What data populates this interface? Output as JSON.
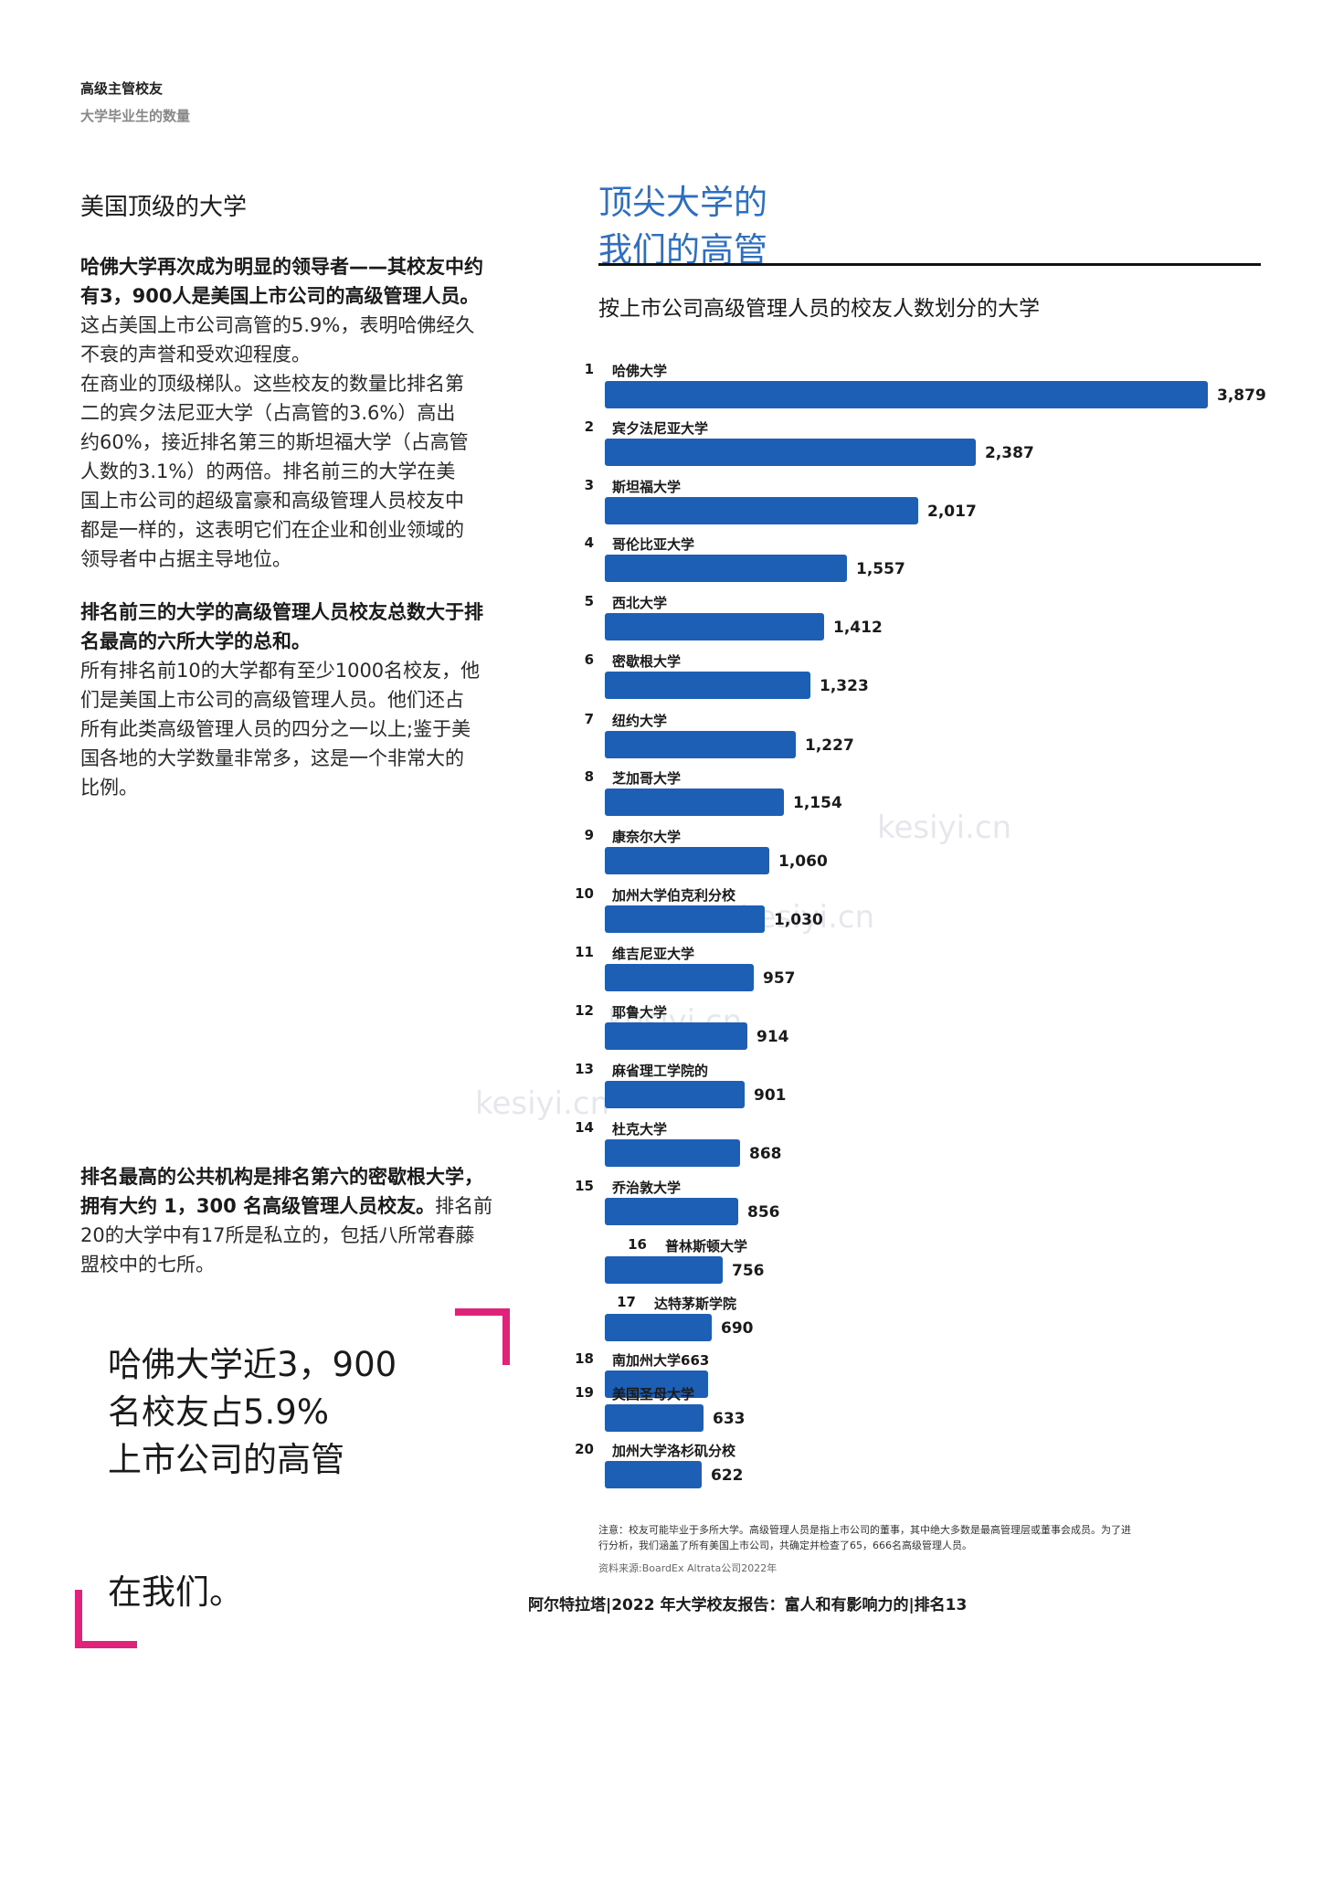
{
  "header": {
    "title": "高级主管校友",
    "subtitle": "大学毕业生的数量"
  },
  "left": {
    "heading": "美国顶级的大学",
    "p1_bold": [
      "哈佛大学再次成为明显的领导者——其校友中约",
      "有3，900人是美国上市公司的高级管理人员。"
    ],
    "p1_lines": [
      "这占美国上市公司高管的5.9%，表明哈佛经久",
      "不衰的声誉和受欢迎程度。",
      "在商业的顶级梯队。这些校友的数量比排名第",
      "二的宾夕法尼亚大学（占高管的3.6%）高出",
      "约60%，接近排名第三的斯坦福大学（占高管",
      "人数的3.1%）的两倍。排名前三的大学在美",
      "国上市公司的超级富豪和高级管理人员校友中",
      "都是一样的，这表明它们在企业和创业领域的",
      "领导者中占据主导地位。"
    ],
    "p2_bold": [
      "排名前三的大学的高级管理人员校友总数大于排",
      "名最高的六所大学的总和。"
    ],
    "p2_lines": [
      "所有排名前10的大学都有至少1000名校友，他",
      "们是美国上市公司的高级管理人员。他们还占",
      "所有此类高级管理人员的四分之一以上;鉴于美",
      "国各地的大学数量非常多，这是一个非常大的",
      "比例。"
    ],
    "p3_bold_1": "排名最高的公共机构是排名第六的密歇根大学，",
    "p3_bold_2": "拥有大约 1，300 名高级管理人员校友。",
    "p3_rest_2": "排名前",
    "p3_lines": [
      "20的大学中有17所是私立的，包括八所常春藤",
      "盟校中的七所。"
    ],
    "quote": [
      "哈佛大学近3，900",
      "名校友占5.9%",
      "上市公司的高管"
    ],
    "quote_tail": "在我们。"
  },
  "right": {
    "title_lines": [
      "顶尖大学的",
      "我们的高管"
    ],
    "chart_subtitle": "按上市公司高级管理人员的校友人数划分的大学"
  },
  "chart_data": {
    "type": "bar",
    "orientation": "horizontal",
    "title": "按上市公司高级管理人员的校友人数划分的大学",
    "bar_color": "#1d5fb4",
    "ranks": [
      "1",
      "2",
      "3",
      "4",
      "5",
      "6",
      "7",
      "8",
      "9",
      "10",
      "11",
      "12",
      "13",
      "14",
      "15",
      "16",
      "17",
      "18",
      "19",
      "20"
    ],
    "categories": [
      "哈佛大学",
      "宾夕法尼亚大学",
      "斯坦福大学",
      "哥伦比亚大学",
      "西北大学",
      "密歇根大学",
      "纽约大学",
      "芝加哥大学",
      "康奈尔大学",
      "加州大学伯克利分校",
      "维吉尼亚大学",
      "耶鲁大学",
      "麻省理工学院的",
      "杜克大学",
      "乔治敦大学",
      "普林斯顿大学",
      "达特茅斯学院",
      "南加州大学663",
      "美国圣母大学",
      "加州大学洛杉矶分校"
    ],
    "values": [
      3879,
      2387,
      2017,
      1557,
      1412,
      1323,
      1227,
      1154,
      1060,
      1030,
      957,
      914,
      901,
      868,
      856,
      756,
      690,
      null,
      633,
      622
    ],
    "value_labels": [
      "3,879",
      "2,387",
      "2,017",
      "1,557",
      "1,412",
      "1,323",
      "1,227",
      "1,154",
      "1,060",
      "1,030",
      "957",
      "914",
      "901",
      "868",
      "856",
      "756",
      "690",
      "",
      "633",
      "622"
    ],
    "xlim": [
      0,
      3879
    ]
  },
  "notes": {
    "note_lines": [
      "注意：校友可能毕业于多所大学。高级管理人员是指上市公司的董事，其中绝大多数是最高管理层或董事会成员。为了进",
      "行分析，我们涵盖了所有美国上市公司，共确定并检查了65，666名高级管理人员。"
    ],
    "source": "资料来源:BoardEx Altrata公司2022年"
  },
  "footer": "阿尔特拉塔|2022 年大学校友报告：富人和有影响力的|排名13",
  "watermark": "kesiyi.cn",
  "accent_color": "#e0237a"
}
